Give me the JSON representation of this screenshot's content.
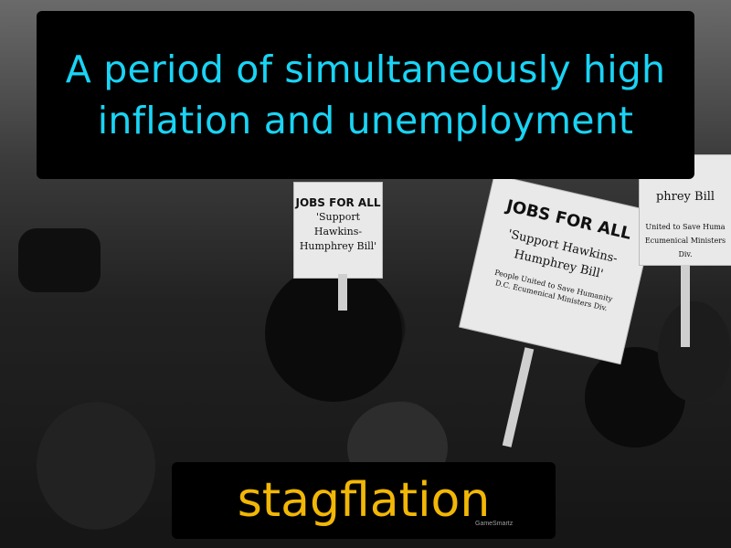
{
  "definition": "A period of simultaneously high inflation and unemployment",
  "term": "stagflation",
  "brand": "GameSmartz",
  "colors": {
    "definition_text": "#19d4f5",
    "term_text": "#f2b706",
    "box_background": "#000000"
  },
  "signs": {
    "left": {
      "heading": "JOBS FOR ALL",
      "line1": "'Support Hawkins-",
      "line2": "Humphrey Bill'"
    },
    "main": {
      "heading": "JOBS FOR ALL",
      "line1": "'Support Hawkins-",
      "line2": "Humphrey Bill'",
      "footer1": "People United to Save Humanity",
      "footer2": "D.C. Ecumenical Ministers Div."
    },
    "right": {
      "line1": "phrey Bill",
      "line2": "United to Save Huma",
      "line3": "Ecumenical Ministers Div."
    }
  }
}
